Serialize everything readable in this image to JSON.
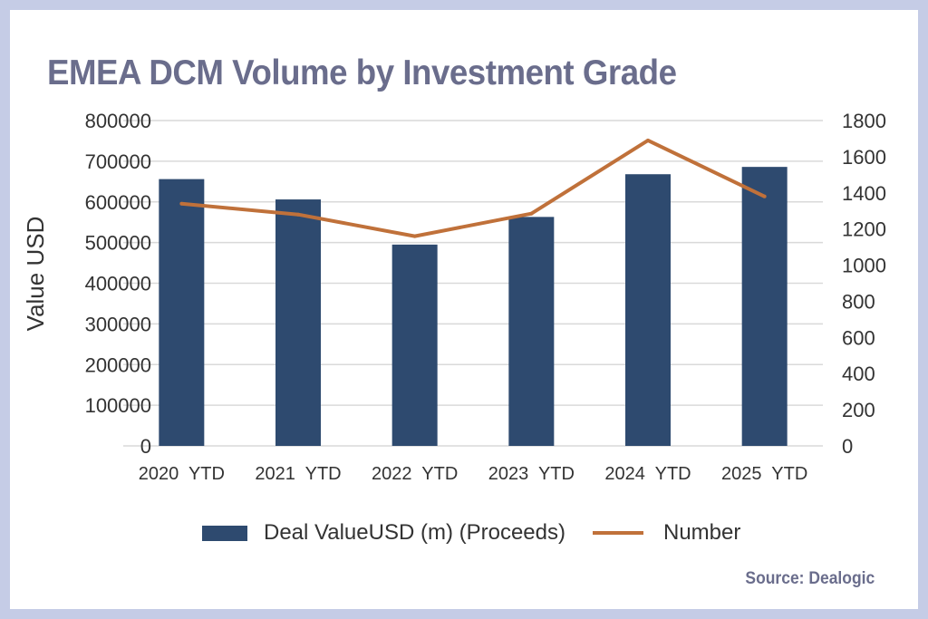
{
  "title": "EMEA DCM Volume by Investment Grade",
  "source": "Source: Dealogic",
  "colors": {
    "frame": "#c5cce6",
    "bar": "#2e4a6f",
    "line": "#c0713a",
    "grid": "#d9d9d9",
    "title": "#6a6d8c"
  },
  "chart_data": {
    "type": "bar",
    "categories": [
      "2020  YTD",
      "2021  YTD",
      "2022  YTD",
      "2023  YTD",
      "2024  YTD",
      "2025  YTD"
    ],
    "series": [
      {
        "name": "Deal ValueUSD (m) (Proceeds)",
        "type": "bar",
        "axis": "left",
        "values": [
          656000,
          606000,
          495000,
          563000,
          668000,
          686000
        ]
      },
      {
        "name": "Number",
        "type": "line",
        "axis": "right",
        "values": [
          1340,
          1280,
          1160,
          1285,
          1690,
          1380
        ]
      }
    ],
    "ylabel": "Value USD",
    "y_left": {
      "min": 0,
      "max": 800000,
      "step": 100000
    },
    "y_right": {
      "min": 0,
      "max": 1800,
      "step": 200
    },
    "grid": true,
    "legend_position": "bottom"
  }
}
